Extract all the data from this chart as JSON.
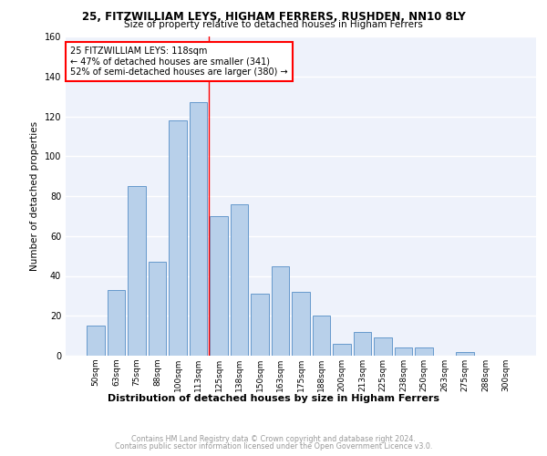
{
  "title1": "25, FITZWILLIAM LEYS, HIGHAM FERRERS, RUSHDEN, NN10 8LY",
  "title2": "Size of property relative to detached houses in Higham Ferrers",
  "xlabel": "Distribution of detached houses by size in Higham Ferrers",
  "ylabel": "Number of detached properties",
  "categories": [
    "50sqm",
    "63sqm",
    "75sqm",
    "88sqm",
    "100sqm",
    "113sqm",
    "125sqm",
    "138sqm",
    "150sqm",
    "163sqm",
    "175sqm",
    "188sqm",
    "200sqm",
    "213sqm",
    "225sqm",
    "238sqm",
    "250sqm",
    "263sqm",
    "275sqm",
    "288sqm",
    "300sqm"
  ],
  "values": [
    15,
    33,
    85,
    47,
    118,
    127,
    70,
    76,
    31,
    45,
    32,
    20,
    6,
    12,
    9,
    4,
    4,
    0,
    2,
    0,
    0
  ],
  "bar_color": "#b8d0ea",
  "bar_edge_color": "#6699cc",
  "annotation_text": "25 FITZWILLIAM LEYS: 118sqm\n← 47% of detached houses are smaller (341)\n52% of semi-detached houses are larger (380) →",
  "footer1": "Contains HM Land Registry data © Crown copyright and database right 2024.",
  "footer2": "Contains public sector information licensed under the Open Government Licence v3.0.",
  "ylim": [
    0,
    160
  ],
  "yticks": [
    0,
    20,
    40,
    60,
    80,
    100,
    120,
    140,
    160
  ],
  "bg_color": "#eef2fb",
  "grid_color": "#ffffff",
  "red_line_idx": 5.5
}
